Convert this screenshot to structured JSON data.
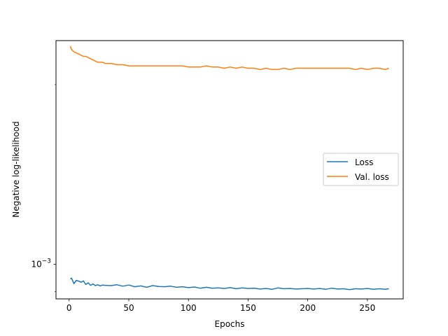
{
  "chart_data": {
    "type": "line",
    "xlabel": "Epochs",
    "ylabel": "Negative log-likelihood",
    "xlim": [
      -11,
      280
    ],
    "xticks": [
      0,
      50,
      100,
      150,
      200,
      250
    ],
    "xtick_labels": [
      "0",
      "50",
      "100",
      "150",
      "200",
      "250"
    ],
    "yscale": "log",
    "ylim": [
      0.000875,
      0.00237
    ],
    "yticks": [
      0.001
    ],
    "ytick_labels": [
      {
        "base": "10",
        "exp": "−3"
      }
    ],
    "yminor_ticks": [
      0.0009,
      0.002
    ],
    "legend_position": "center-right",
    "colors": {
      "loss": "#1f77b4",
      "val_loss": "#ff7f0e"
    },
    "series": [
      {
        "name": "Loss",
        "color": "#1f77b4",
        "x": [
          1,
          2,
          4,
          6,
          8,
          10,
          12,
          14,
          16,
          18,
          20,
          22,
          24,
          26,
          28,
          30,
          35,
          40,
          45,
          50,
          55,
          60,
          65,
          70,
          75,
          80,
          85,
          90,
          95,
          100,
          105,
          110,
          115,
          120,
          125,
          130,
          135,
          140,
          145,
          150,
          155,
          160,
          165,
          170,
          175,
          180,
          185,
          190,
          195,
          200,
          205,
          210,
          215,
          220,
          225,
          230,
          235,
          240,
          245,
          250,
          255,
          260,
          265,
          268
        ],
        "values": [
          0.000945,
          0.000948,
          0.000928,
          0.00094,
          0.000937,
          0.000933,
          0.000938,
          0.000925,
          0.000931,
          0.000922,
          0.000927,
          0.000921,
          0.000924,
          0.00092,
          0.000923,
          0.000922,
          0.000921,
          0.000924,
          0.000919,
          0.000923,
          0.000917,
          0.00092,
          0.000915,
          0.000921,
          0.000918,
          0.000917,
          0.000919,
          0.000915,
          0.000917,
          0.000914,
          0.000916,
          0.000912,
          0.000915,
          0.000912,
          0.000913,
          0.000911,
          0.000914,
          0.00091,
          0.000913,
          0.000911,
          0.000912,
          0.000909,
          0.000911,
          0.000908,
          0.000913,
          0.00091,
          0.000911,
          0.000909,
          0.00091,
          0.000911,
          0.000909,
          0.000911,
          0.000908,
          0.000912,
          0.000909,
          0.00091,
          0.000907,
          0.00091,
          0.000909,
          0.000911,
          0.000908,
          0.00091,
          0.000908,
          0.00091
        ]
      },
      {
        "name": "Val. loss",
        "color": "#ff7f0e",
        "x": [
          1,
          2,
          4,
          6,
          8,
          10,
          12,
          14,
          16,
          18,
          20,
          22,
          24,
          26,
          28,
          30,
          35,
          40,
          45,
          50,
          55,
          60,
          65,
          70,
          75,
          80,
          85,
          90,
          95,
          100,
          105,
          110,
          115,
          120,
          125,
          130,
          135,
          140,
          145,
          150,
          155,
          160,
          165,
          170,
          175,
          180,
          185,
          190,
          195,
          200,
          205,
          210,
          215,
          220,
          225,
          230,
          235,
          240,
          245,
          250,
          255,
          260,
          265,
          268
        ],
        "values": [
          0.00232,
          0.00229,
          0.00227,
          0.00226,
          0.00225,
          0.00224,
          0.00223,
          0.00223,
          0.00222,
          0.00221,
          0.0022,
          0.00219,
          0.00218,
          0.00218,
          0.00218,
          0.00217,
          0.00217,
          0.00216,
          0.00216,
          0.00215,
          0.00215,
          0.00215,
          0.00215,
          0.00215,
          0.00215,
          0.00215,
          0.00215,
          0.00215,
          0.00215,
          0.00214,
          0.00214,
          0.00214,
          0.00215,
          0.00214,
          0.00214,
          0.00213,
          0.00214,
          0.00213,
          0.00214,
          0.00213,
          0.00213,
          0.00212,
          0.00213,
          0.00212,
          0.00212,
          0.00213,
          0.00212,
          0.00213,
          0.00213,
          0.00213,
          0.00213,
          0.00213,
          0.00213,
          0.00213,
          0.00213,
          0.00213,
          0.00213,
          0.00212,
          0.00213,
          0.00212,
          0.00213,
          0.00213,
          0.00212,
          0.00213
        ]
      }
    ]
  }
}
